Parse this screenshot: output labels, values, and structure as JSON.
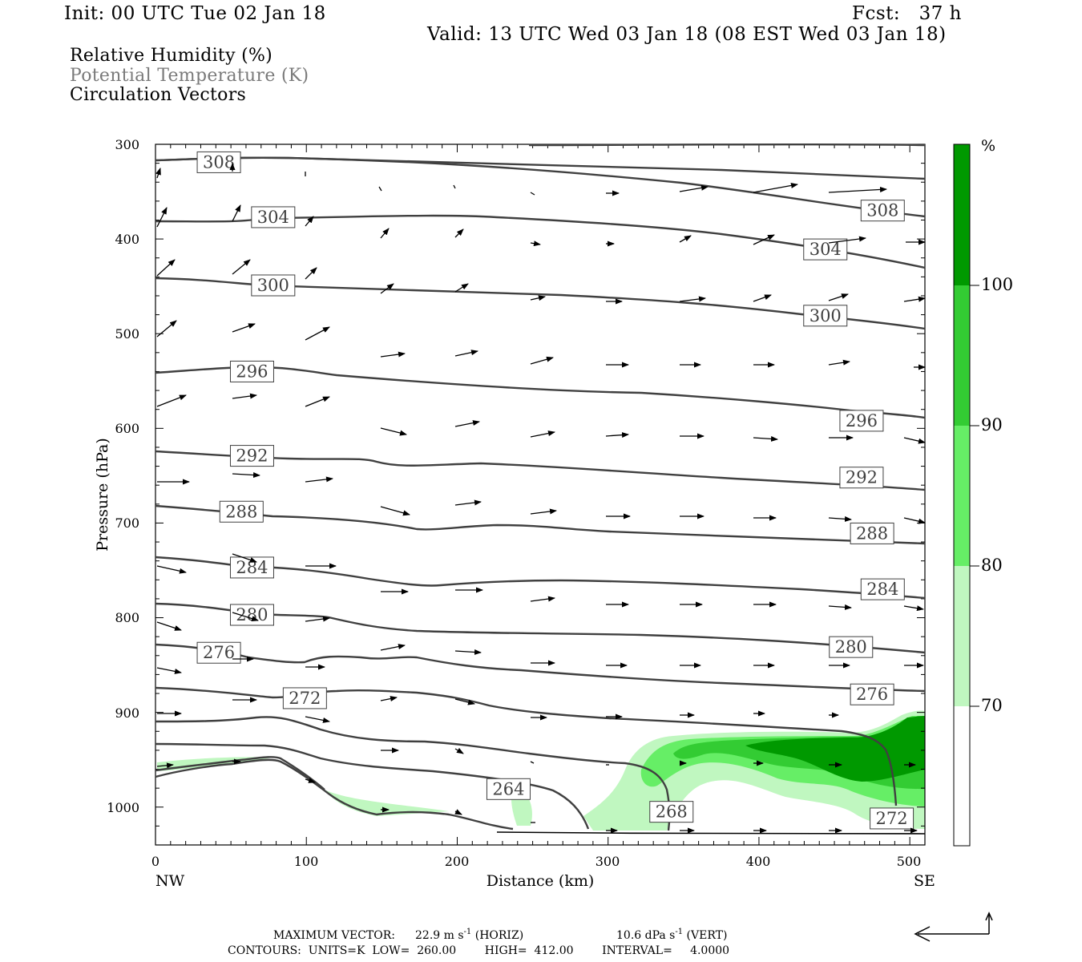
{
  "header": {
    "init": "Init: 00 UTC Tue 02 Jan 18",
    "fcst": "Fcst:   37 h",
    "valid": "Valid: 13 UTC Wed 03 Jan 18 (08 EST Wed 03 Jan 18)"
  },
  "legend": {
    "line1": "Relative Humidity (%)",
    "line2": "Potential Temperature (K)",
    "line3": "Circulation Vectors"
  },
  "footer": {
    "max_label": "MAXIMUM VECTOR:",
    "max_horiz": "22.9 m s",
    "max_horiz_unit": " (HORIZ)",
    "max_vert": "10.6 dPa s",
    "max_vert_unit": " (VERT)",
    "contours": "CONTOURS:  UNITS=K  LOW=  260.00        HIGH=  412.00        INTERVAL=     4.0000"
  },
  "colors": {
    "rh70": "#c0f7c0",
    "rh80": "#66ee66",
    "rh90": "#33cc33",
    "rh100": "#009900",
    "contour": "#404040"
  },
  "chart_data": {
    "type": "cross-section",
    "xlabel": "Distance (km)",
    "ylabel": "Pressure (hPa)",
    "xlim": [
      0,
      510
    ],
    "ylim": [
      1040,
      300
    ],
    "x_ticks": [
      "0",
      "100",
      "200",
      "300",
      "400",
      "500"
    ],
    "y_ticks": [
      "300",
      "400",
      "500",
      "600",
      "700",
      "800",
      "900",
      "1000"
    ],
    "x_end_labels": {
      "left": "NW",
      "right": "SE"
    },
    "colorbar": {
      "unit": "%",
      "levels": [
        "70",
        "80",
        "90",
        "100"
      ]
    },
    "theta_labels": [
      {
        "text": "308",
        "x": 42,
        "p": 319
      },
      {
        "text": "304",
        "x": 78,
        "p": 377
      },
      {
        "text": "300",
        "x": 78,
        "p": 449
      },
      {
        "text": "296",
        "x": 64,
        "p": 540
      },
      {
        "text": "292",
        "x": 64,
        "p": 629
      },
      {
        "text": "288",
        "x": 57,
        "p": 688
      },
      {
        "text": "284",
        "x": 64,
        "p": 747
      },
      {
        "text": "280",
        "x": 64,
        "p": 797
      },
      {
        "text": "276",
        "x": 42,
        "p": 837
      },
      {
        "text": "272",
        "x": 99,
        "p": 885
      },
      {
        "text": "264",
        "x": 234,
        "p": 981
      },
      {
        "text": "268",
        "x": 342,
        "p": 1005
      },
      {
        "text": "272",
        "x": 488,
        "p": 1012
      },
      {
        "text": "276",
        "x": 475,
        "p": 881
      },
      {
        "text": "280",
        "x": 461,
        "p": 831
      },
      {
        "text": "284",
        "x": 482,
        "p": 770
      },
      {
        "text": "288",
        "x": 475,
        "p": 711
      },
      {
        "text": "292",
        "x": 468,
        "p": 652
      },
      {
        "text": "296",
        "x": 468,
        "p": 592
      },
      {
        "text": "300",
        "x": 444,
        "p": 481
      },
      {
        "text": "304",
        "x": 444,
        "p": 411
      },
      {
        "text": "308",
        "x": 482,
        "p": 370
      }
    ]
  }
}
